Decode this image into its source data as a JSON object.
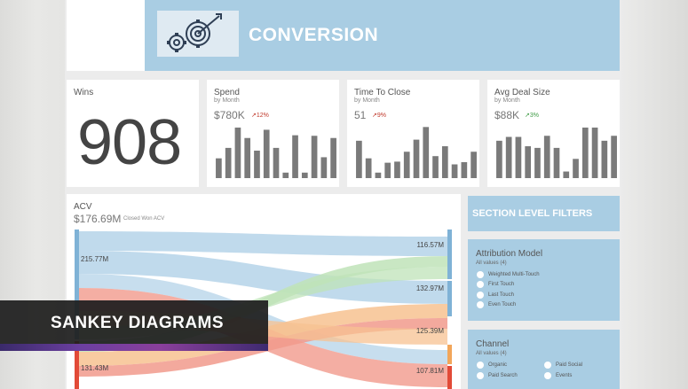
{
  "header": {
    "title": "CONVERSION",
    "logo_icon": "gears-target-icon"
  },
  "kpis": {
    "wins": {
      "title": "Wins",
      "value": "908"
    },
    "spend": {
      "title": "Spend",
      "subtitle": "by Month",
      "value": "$780K",
      "delta": "12%",
      "delta_color": "#c0392b",
      "bars": [
        0.36,
        0.55,
        0.92,
        0.73,
        0.5,
        0.88,
        0.55,
        0.1,
        0.78,
        0.1,
        0.77,
        0.38,
        0.73
      ]
    },
    "time_to_close": {
      "title": "Time To Close",
      "subtitle": "by Month",
      "value": "51",
      "delta": "9%",
      "delta_color": "#c0392b",
      "bars": [
        0.68,
        0.36,
        0.1,
        0.28,
        0.3,
        0.48,
        0.7,
        0.93,
        0.4,
        0.58,
        0.25,
        0.29,
        0.48
      ]
    },
    "avg_deal_size": {
      "title": "Avg Deal Size",
      "subtitle": "by Month",
      "value": "$88K",
      "delta": "3%",
      "delta_color": "#3e9b45",
      "bars": [
        0.68,
        0.75,
        0.75,
        0.58,
        0.55,
        0.77,
        0.55,
        0.12,
        0.35,
        0.92,
        0.92,
        0.68,
        0.77
      ]
    }
  },
  "acv": {
    "title": "ACV",
    "value": "$176.69M",
    "subtitle": "Closed Won ACV",
    "left_labels": [
      "215.77M",
      "131.43M"
    ],
    "right_labels": [
      "116.57M",
      "132.97M",
      "125.39M",
      "107.81M"
    ],
    "colors": {
      "blue": "#7fb2d6",
      "green": "#9fd39a",
      "orange": "#f2a65a",
      "red": "#e24a37"
    }
  },
  "filters": {
    "section_title": "SECTION LEVEL FILTERS",
    "attribution": {
      "title": "Attribution Model",
      "subtitle": "All values (4)",
      "options": [
        "Weighted Multi-Touch",
        "First Touch",
        "Last Touch",
        "Even Touch"
      ]
    },
    "channel": {
      "title": "Channel",
      "subtitle": "All values (4)",
      "options": [
        "Organic",
        "Paid Social",
        "Paid Search",
        "Events"
      ]
    }
  },
  "overlay": {
    "title": "SANKEY DIAGRAMS"
  }
}
